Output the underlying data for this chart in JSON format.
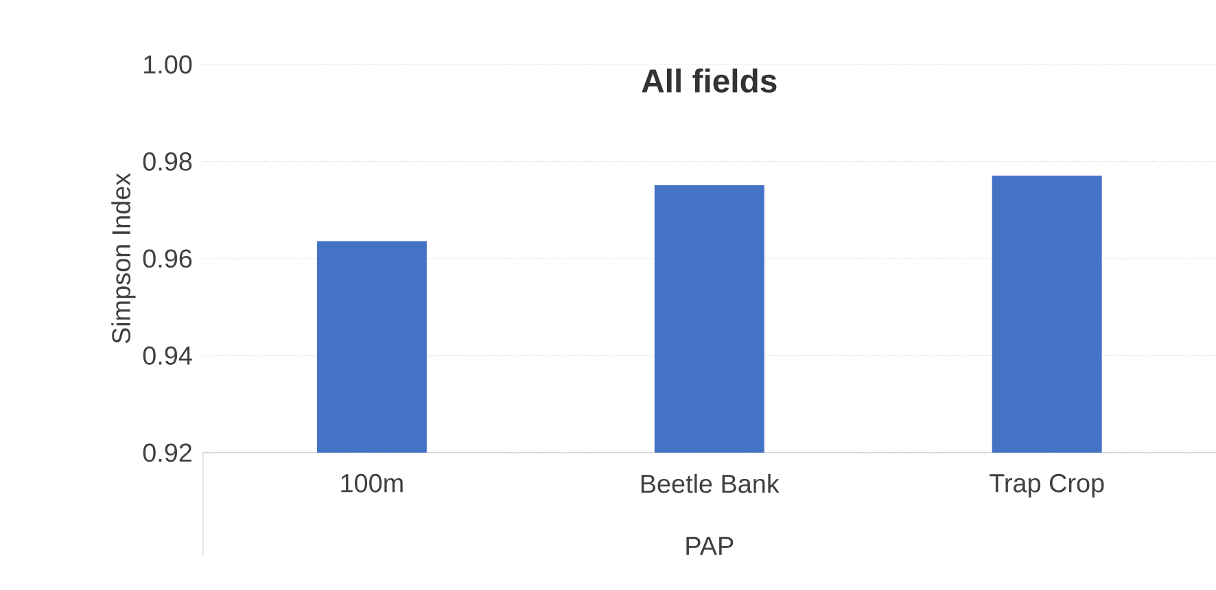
{
  "chart_data": {
    "type": "bar",
    "title": "All fields",
    "xlabel": "PAP",
    "ylabel": "Simpson Index",
    "categories": [
      "100m",
      "Beetle Bank",
      "Trap Crop"
    ],
    "values": [
      0.9636,
      0.9751,
      0.9771
    ],
    "color": "#4472c4",
    "ylim": [
      0.92,
      1.0
    ],
    "yticks": [
      {
        "value": 0.92,
        "label": "0.92"
      },
      {
        "value": 0.94,
        "label": "0.94"
      },
      {
        "value": 0.96,
        "label": "0.96"
      },
      {
        "value": 0.98,
        "label": "0.98"
      },
      {
        "value": 1.0,
        "label": "1.00"
      }
    ],
    "grid": "y"
  }
}
